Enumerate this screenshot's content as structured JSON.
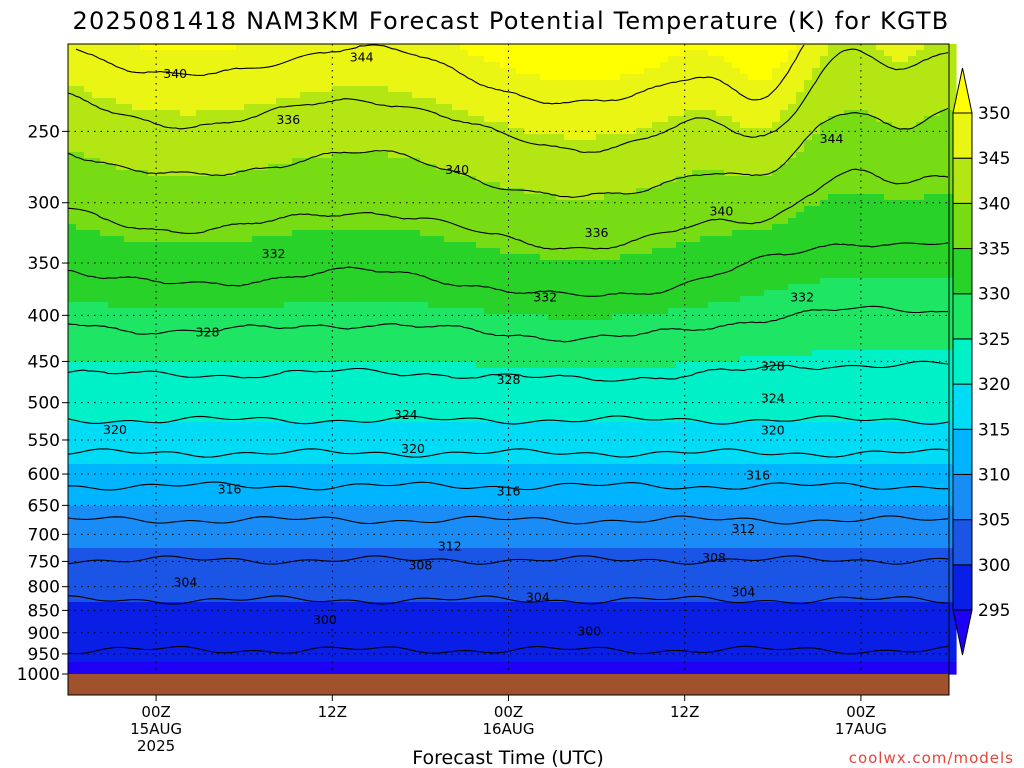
{
  "chart_data": {
    "type": "heatmap",
    "title": "2025081418 NAM3KM Forecast Potential Temperature (K) for KGTB",
    "xlabel": "Forecast Time (UTC)",
    "ylabel": "",
    "credit": "coolwx.com/models",
    "y_scale": "log",
    "y_reversed": true,
    "ylim": [
      1000,
      200
    ],
    "y_ticks": [
      250,
      300,
      350,
      400,
      450,
      500,
      550,
      600,
      650,
      700,
      750,
      800,
      850,
      900,
      950,
      1000
    ],
    "x_ticks": [
      {
        "hour": 0,
        "lines": [
          "00Z",
          "15AUG",
          "2025"
        ]
      },
      {
        "hour": 12,
        "lines": [
          "12Z"
        ]
      },
      {
        "hour": 24,
        "lines": [
          "00Z",
          "16AUG"
        ]
      },
      {
        "hour": 36,
        "lines": [
          "12Z"
        ]
      },
      {
        "hour": 48,
        "lines": [
          "00Z",
          "17AUG"
        ]
      }
    ],
    "xlim": [
      -6,
      54
    ],
    "grid": true,
    "contour_interval": 4,
    "contour_labels": [
      {
        "hour": 1.3,
        "p": 216,
        "v": "340"
      },
      {
        "hour": 14,
        "p": 207,
        "v": "344"
      },
      {
        "hour": 9,
        "p": 243,
        "v": "336"
      },
      {
        "hour": 20.5,
        "p": 276,
        "v": "340"
      },
      {
        "hour": 38.5,
        "p": 307,
        "v": "340"
      },
      {
        "hour": 46,
        "p": 255,
        "v": "344"
      },
      {
        "hour": 30,
        "p": 324,
        "v": "336"
      },
      {
        "hour": 8,
        "p": 342,
        "v": "332"
      },
      {
        "hour": 26.5,
        "p": 382,
        "v": "332"
      },
      {
        "hour": 44,
        "p": 382,
        "v": "332"
      },
      {
        "hour": 3.5,
        "p": 418,
        "v": "328"
      },
      {
        "hour": 24,
        "p": 472,
        "v": "328"
      },
      {
        "hour": 42,
        "p": 456,
        "v": "328"
      },
      {
        "hour": -2.8,
        "p": 536,
        "v": "320"
      },
      {
        "hour": 17,
        "p": 516,
        "v": "324"
      },
      {
        "hour": 42,
        "p": 495,
        "v": "324"
      },
      {
        "hour": 17.5,
        "p": 563,
        "v": "320"
      },
      {
        "hour": 42,
        "p": 537,
        "v": "320"
      },
      {
        "hour": 5,
        "p": 624,
        "v": "316"
      },
      {
        "hour": 24,
        "p": 627,
        "v": "316"
      },
      {
        "hour": 41,
        "p": 602,
        "v": "316"
      },
      {
        "hour": 40,
        "p": 690,
        "v": "312"
      },
      {
        "hour": 20,
        "p": 722,
        "v": "312"
      },
      {
        "hour": 18,
        "p": 758,
        "v": "308"
      },
      {
        "hour": 38,
        "p": 744,
        "v": "308"
      },
      {
        "hour": 2,
        "p": 792,
        "v": "304"
      },
      {
        "hour": 26,
        "p": 822,
        "v": "304"
      },
      {
        "hour": 40,
        "p": 812,
        "v": "304"
      },
      {
        "hour": 11.5,
        "p": 871,
        "v": "300"
      },
      {
        "hour": 29.5,
        "p": 897,
        "v": "300"
      }
    ],
    "colorbar": {
      "levels": [
        295,
        300,
        305,
        310,
        315,
        320,
        325,
        330,
        335,
        340,
        345,
        350
      ],
      "colors": [
        "#1e00f5",
        "#0a1fe6",
        "#1a55e6",
        "#1a8cf5",
        "#00b4ff",
        "#00dcf5",
        "#00f0c8",
        "#1ee664",
        "#28d228",
        "#78dc14",
        "#b4e614",
        "#ebf514",
        "#ffff00"
      ]
    },
    "ground_color": "#a0522d"
  }
}
